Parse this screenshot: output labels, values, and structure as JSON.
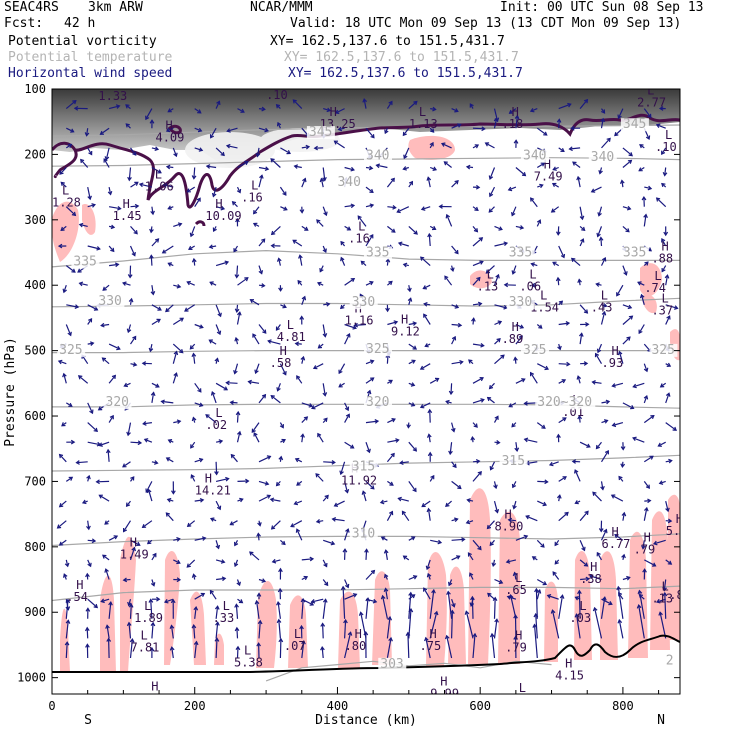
{
  "header": {
    "project": "SEAC4RS",
    "model": "3km ARW",
    "center": "NCAR/MMM",
    "init": "Init: 00 UTC Sun 08 Sep 13",
    "fcst_label": "Fcst:",
    "fcst_value": "42 h",
    "valid": "Valid: 18 UTC Mon 09 Sep 13 (13 CDT Mon 09 Sep 13)",
    "fields": [
      {
        "name": "Potential vorticity",
        "xy": "XY= 162.5,137.6 to 151.5,431.7",
        "color": "#000000"
      },
      {
        "name": "Potential temperature",
        "xy": "XY= 162.5,137.6 to 151.5,431.7",
        "color": "#b4b4b4"
      },
      {
        "name": "Horizontal wind speed",
        "xy": "XY= 162.5,137.6 to 151.5,431.7",
        "color": "#1a1a80"
      }
    ]
  },
  "colors": {
    "theta": "#a8a8a8",
    "pv_contour": "#4a1048",
    "pv_fill": "#ffbcbc",
    "wind_arrow": "#1a1a80",
    "hl_label": "#33104a",
    "terrain": "#000000"
  },
  "chart_data": {
    "type": "cross-section",
    "xlabel": "Distance (km)",
    "ylabel": "Pressure (hPa)",
    "xlim": [
      0,
      880
    ],
    "ylim": [
      1025,
      100
    ],
    "x_ticks": [
      0,
      200,
      400,
      600,
      800
    ],
    "y_ticks": [
      100,
      200,
      300,
      400,
      500,
      600,
      700,
      800,
      900,
      1000
    ],
    "x_end_labels": {
      "left": "S",
      "right": "N"
    },
    "theta_lines": [
      {
        "label": "345",
        "points": [
          [
            0,
            172
          ],
          [
            100,
            170
          ],
          [
            200,
            166
          ],
          [
            300,
            162
          ],
          [
            400,
            160
          ],
          [
            500,
            158
          ],
          [
            600,
            157
          ],
          [
            700,
            157
          ],
          [
            800,
            156
          ],
          [
            880,
            155
          ]
        ]
      },
      {
        "label": "340",
        "points": [
          [
            0,
            218
          ],
          [
            100,
            217
          ],
          [
            200,
            214
          ],
          [
            300,
            211
          ],
          [
            400,
            208
          ],
          [
            500,
            207
          ],
          [
            600,
            206
          ],
          [
            700,
            205
          ],
          [
            800,
            206
          ],
          [
            880,
            208
          ]
        ]
      },
      {
        "label": "335",
        "points": [
          [
            0,
            372
          ],
          [
            100,
            363
          ],
          [
            200,
            352
          ],
          [
            300,
            347
          ],
          [
            400,
            352
          ],
          [
            500,
            360
          ],
          [
            600,
            362
          ],
          [
            700,
            362
          ],
          [
            800,
            362
          ],
          [
            880,
            362
          ]
        ]
      },
      {
        "label": "330",
        "points": [
          [
            0,
            433
          ],
          [
            100,
            432
          ],
          [
            200,
            430
          ],
          [
            300,
            428
          ],
          [
            400,
            428
          ],
          [
            500,
            430
          ],
          [
            600,
            432
          ],
          [
            700,
            430
          ],
          [
            800,
            424
          ],
          [
            880,
            420
          ]
        ]
      },
      {
        "label": "325",
        "points": [
          [
            0,
            503
          ],
          [
            100,
            503
          ],
          [
            200,
            501
          ],
          [
            300,
            500
          ],
          [
            400,
            500
          ],
          [
            500,
            500
          ],
          [
            600,
            500
          ],
          [
            700,
            500
          ],
          [
            800,
            500
          ],
          [
            880,
            500
          ]
        ]
      },
      {
        "label": "320",
        "points": [
          [
            0,
            586
          ],
          [
            100,
            586
          ],
          [
            200,
            583
          ],
          [
            300,
            582
          ],
          [
            400,
            582
          ],
          [
            500,
            582
          ],
          [
            600,
            582
          ],
          [
            700,
            583
          ],
          [
            800,
            586
          ],
          [
            880,
            588
          ]
        ]
      },
      {
        "label": "315",
        "points": [
          [
            0,
            684
          ],
          [
            100,
            683
          ],
          [
            200,
            682
          ],
          [
            300,
            680
          ],
          [
            400,
            676
          ],
          [
            500,
            672
          ],
          [
            600,
            670
          ],
          [
            700,
            668
          ],
          [
            800,
            664
          ],
          [
            880,
            660
          ]
        ]
      },
      {
        "label": "310",
        "points": [
          [
            0,
            798
          ],
          [
            100,
            792
          ],
          [
            200,
            788
          ],
          [
            300,
            785
          ],
          [
            400,
            784
          ],
          [
            500,
            784
          ],
          [
            600,
            786
          ],
          [
            700,
            788
          ],
          [
            800,
            785
          ],
          [
            880,
            780
          ]
        ]
      },
      {
        "label": "305",
        "points": [
          [
            0,
            882
          ],
          [
            100,
            870
          ],
          [
            200,
            866
          ],
          [
            300,
            866
          ],
          [
            400,
            866
          ],
          [
            500,
            864
          ],
          [
            600,
            862
          ],
          [
            700,
            862
          ],
          [
            800,
            864
          ],
          [
            880,
            860
          ]
        ]
      },
      {
        "label": "303",
        "points": [
          [
            300,
            1005
          ],
          [
            350,
            985
          ],
          [
            400,
            980
          ],
          [
            450,
            975
          ],
          [
            500,
            982
          ],
          [
            550,
            978
          ],
          [
            600,
            985
          ],
          [
            650,
            975
          ],
          [
            700,
            980
          ]
        ]
      }
    ],
    "theta_labels": [
      {
        "text": "345",
        "x": 360,
        "p": 172
      },
      {
        "text": "345",
        "x": 800,
        "p": 160
      },
      {
        "text": "340",
        "x": 440,
        "p": 208
      },
      {
        "text": "340",
        "x": 660,
        "p": 208
      },
      {
        "text": "340",
        "x": 755,
        "p": 210
      },
      {
        "text": "340",
        "x": 400,
        "p": 248
      },
      {
        "text": "335",
        "x": 30,
        "p": 370
      },
      {
        "text": "335",
        "x": 440,
        "p": 356
      },
      {
        "text": "335",
        "x": 640,
        "p": 356
      },
      {
        "text": "335",
        "x": 800,
        "p": 356
      },
      {
        "text": "330",
        "x": 65,
        "p": 430
      },
      {
        "text": "330",
        "x": 420,
        "p": 432
      },
      {
        "text": "330",
        "x": 640,
        "p": 432
      },
      {
        "text": "325",
        "x": 10,
        "p": 505
      },
      {
        "text": "325",
        "x": 440,
        "p": 504
      },
      {
        "text": "325",
        "x": 660,
        "p": 505
      },
      {
        "text": "325",
        "x": 840,
        "p": 505
      },
      {
        "text": "320",
        "x": 75,
        "p": 585
      },
      {
        "text": "320",
        "x": 440,
        "p": 585
      },
      {
        "text": "320~320",
        "x": 680,
        "p": 585
      },
      {
        "text": "315",
        "x": 420,
        "p": 683
      },
      {
        "text": "315",
        "x": 630,
        "p": 675
      },
      {
        "text": "310",
        "x": 420,
        "p": 786
      },
      {
        "text": "303",
        "x": 460,
        "p": 985
      },
      {
        "text": "2",
        "x": 860,
        "p": 980
      }
    ],
    "hl_markers": [
      {
        "kind": "L",
        "value": "1.33",
        "x": 65,
        "p": 117
      },
      {
        "kind": "H",
        "value": "4.09",
        "x": 145,
        "p": 180
      },
      {
        "kind": "L",
        "value": "1.06",
        "x": 130,
        "p": 255
      },
      {
        "kind": "L",
        "value": "1.28",
        "x": 0,
        "p": 280
      },
      {
        "kind": "H",
        "value": "1.45",
        "x": 85,
        "p": 300
      },
      {
        "kind": "H",
        "value": "10.09",
        "x": 215,
        "p": 300
      },
      {
        "kind": "L",
        "value": ".16",
        "x": 265,
        "p": 272
      },
      {
        "kind": "L",
        "value": ".10",
        "x": 300,
        "p": 115
      },
      {
        "kind": "H",
        "value": "13.25",
        "x": 375,
        "p": 160
      },
      {
        "kind": "L",
        "value": "2.18",
        "x": 480,
        "p": 96
      },
      {
        "kind": "L",
        "value": "1.13",
        "x": 500,
        "p": 160
      },
      {
        "kind": "H",
        "value": ".18",
        "x": 630,
        "p": 160
      },
      {
        "kind": "L",
        "value": ".16",
        "x": 415,
        "p": 335
      },
      {
        "kind": "H",
        "value": "7.49",
        "x": 675,
        "p": 240
      },
      {
        "kind": "L",
        "value": "2.77",
        "x": 820,
        "p": 127
      },
      {
        "kind": "L",
        "value": ".10",
        "x": 845,
        "p": 195
      },
      {
        "kind": "L",
        "value": ".13",
        "x": 595,
        "p": 408
      },
      {
        "kind": "L",
        "value": ".06",
        "x": 655,
        "p": 408
      },
      {
        "kind": "L",
        "value": "1.54",
        "x": 670,
        "p": 440
      },
      {
        "kind": "L",
        "value": ".43",
        "x": 755,
        "p": 440
      },
      {
        "kind": "H",
        "value": ".88",
        "x": 840,
        "p": 365
      },
      {
        "kind": "L",
        "value": ".74",
        "x": 830,
        "p": 410
      },
      {
        "kind": "L",
        "value": ".37",
        "x": 840,
        "p": 445
      },
      {
        "kind": "H",
        "value": "1.16",
        "x": 410,
        "p": 460
      },
      {
        "kind": "H",
        "value": "9.12",
        "x": 475,
        "p": 477
      },
      {
        "kind": "L",
        "value": "4.81",
        "x": 315,
        "p": 485
      },
      {
        "kind": "H",
        "value": ".58",
        "x": 305,
        "p": 525
      },
      {
        "kind": "H",
        "value": ".89",
        "x": 630,
        "p": 488
      },
      {
        "kind": "H",
        "value": ".93",
        "x": 770,
        "p": 525
      },
      {
        "kind": "L",
        "value": ".02",
        "x": 215,
        "p": 620
      },
      {
        "kind": "L",
        "value": ".01",
        "x": 715,
        "p": 600
      },
      {
        "kind": "H",
        "value": "14.21",
        "x": 200,
        "p": 720
      },
      {
        "kind": "H",
        "value": "11.92",
        "x": 405,
        "p": 705
      },
      {
        "kind": "H",
        "value": "8.90",
        "x": 620,
        "p": 775
      },
      {
        "kind": "H",
        "value": "6.77",
        "x": 770,
        "p": 802
      },
      {
        "kind": "H",
        "value": ".79",
        "x": 815,
        "p": 810
      },
      {
        "kind": "H",
        "value": "5.8",
        "x": 860,
        "p": 782
      },
      {
        "kind": "H",
        "value": "1.49",
        "x": 95,
        "p": 818
      },
      {
        "kind": "H",
        "value": ".54",
        "x": 20,
        "p": 883
      },
      {
        "kind": "H",
        "value": ".38",
        "x": 740,
        "p": 855
      },
      {
        "kind": "L",
        "value": ".65",
        "x": 635,
        "p": 872
      },
      {
        "kind": "L",
        "value": ".13",
        "x": 840,
        "p": 885
      },
      {
        "kind": "L",
        "value": ".82",
        "x": 865,
        "p": 880
      },
      {
        "kind": "L",
        "value": "1.89",
        "x": 115,
        "p": 915
      },
      {
        "kind": "L",
        "value": ".33",
        "x": 225,
        "p": 915
      },
      {
        "kind": "L",
        "value": ".03",
        "x": 725,
        "p": 915
      },
      {
        "kind": "L",
        "value": "7.81",
        "x": 110,
        "p": 960
      },
      {
        "kind": "L",
        "value": "5.38",
        "x": 255,
        "p": 983
      },
      {
        "kind": "L",
        "value": ".07",
        "x": 325,
        "p": 958
      },
      {
        "kind": "H",
        "value": ".80",
        "x": 410,
        "p": 958
      },
      {
        "kind": "H",
        "value": ".75",
        "x": 515,
        "p": 958
      },
      {
        "kind": "H",
        "value": ".79",
        "x": 635,
        "p": 960
      },
      {
        "kind": "H",
        "value": "4.15",
        "x": 705,
        "p": 1003
      },
      {
        "kind": "H",
        "value": "10.31",
        "x": 125,
        "p": 1038
      },
      {
        "kind": "H",
        "value": "9.99",
        "x": 530,
        "p": 1030
      },
      {
        "kind": "L",
        "value": ".70",
        "x": 640,
        "p": 1040
      }
    ]
  }
}
